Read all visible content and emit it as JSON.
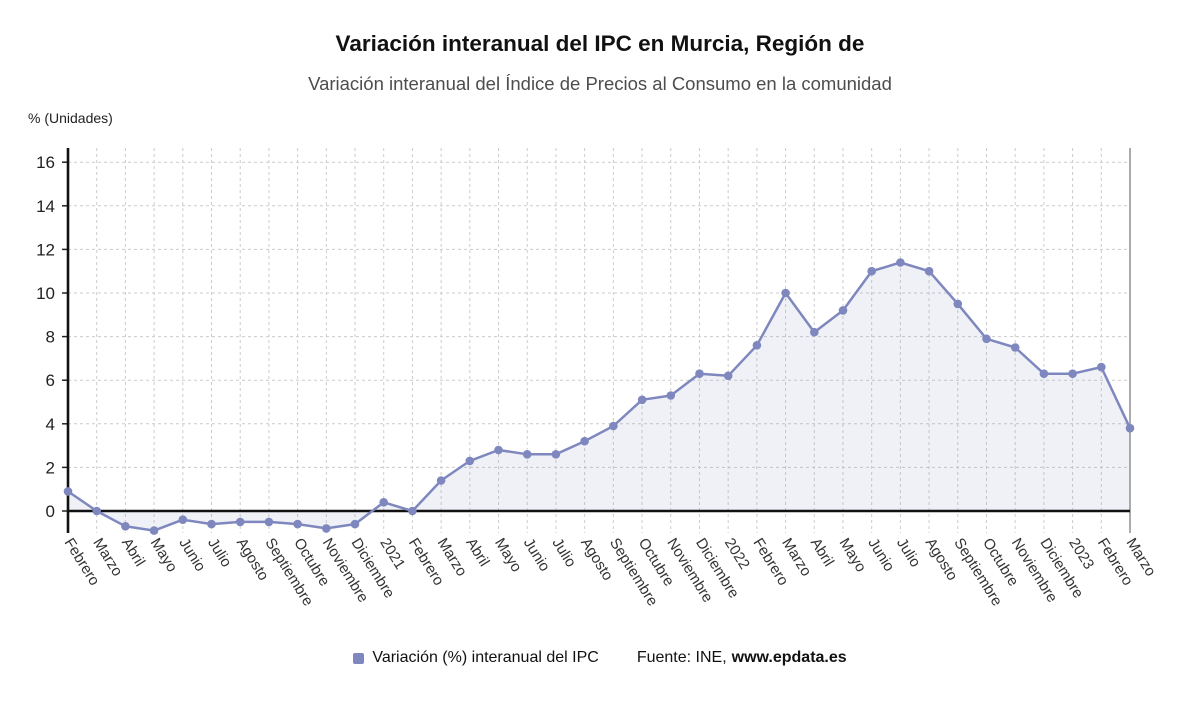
{
  "chart_data": {
    "type": "line",
    "title": "Variación interanual del IPC en Murcia, Región de",
    "subtitle": "Variación interanual del Índice de Precios al Consumo en la comunidad",
    "y_unit_label": "% (Unidades)",
    "categories": [
      "Febrero",
      "Marzo",
      "Abril",
      "Mayo",
      "Junio",
      "Julio",
      "Agosto",
      "Septiembre",
      "Octubre",
      "Noviembre",
      "Diciembre",
      "2021",
      "Febrero",
      "Marzo",
      "Abril",
      "Mayo",
      "Junio",
      "Julio",
      "Agosto",
      "Septiembre",
      "Octubre",
      "Noviembre",
      "Diciembre",
      "2022",
      "Febrero",
      "Marzo",
      "Abril",
      "Mayo",
      "Junio",
      "Julio",
      "Agosto",
      "Septiembre",
      "Octubre",
      "Noviembre",
      "Diciembre",
      "2023",
      "Febrero",
      "Marzo"
    ],
    "series": [
      {
        "name": "Variación (%) interanual del IPC",
        "values": [
          0.9,
          0.0,
          -0.7,
          -0.9,
          -0.4,
          -0.6,
          -0.5,
          -0.5,
          -0.6,
          -0.8,
          -0.6,
          0.4,
          0.0,
          1.4,
          2.3,
          2.8,
          2.6,
          2.6,
          3.2,
          3.9,
          5.1,
          5.3,
          6.3,
          6.2,
          7.6,
          10.0,
          8.2,
          9.2,
          11.0,
          11.4,
          11.0,
          9.5,
          7.9,
          7.5,
          6.3,
          6.3,
          6.6,
          3.8
        ]
      }
    ],
    "ylim": [
      -1.2,
      16.9
    ],
    "yticks": [
      0,
      2,
      4,
      6,
      8,
      10,
      12,
      14,
      16
    ],
    "grid": true,
    "legend_position": "bottom",
    "line_color": "#7f88be",
    "fill_opacity": 0.12,
    "source_prefix": "Fuente: INE,",
    "source_site": "www.epdata.es"
  }
}
